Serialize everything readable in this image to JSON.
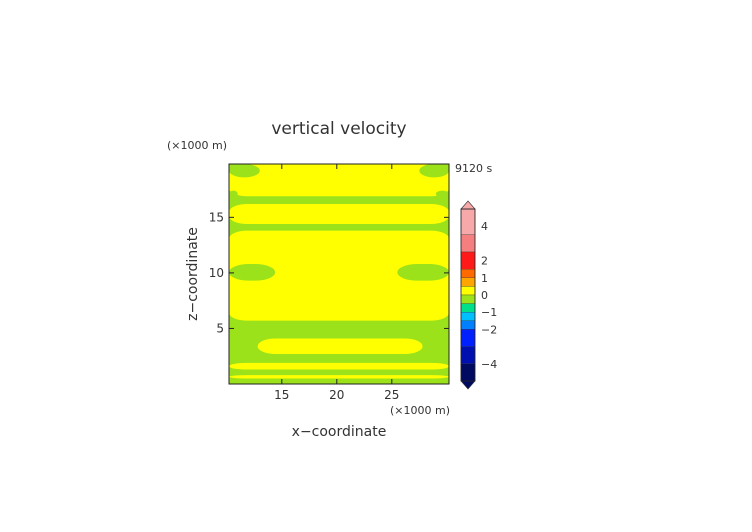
{
  "chart_data": {
    "type": "heatmap",
    "title": "vertical velocity",
    "time_label": "9120 s",
    "xlabel": "x−coordinate",
    "ylabel": "z−coordinate",
    "x_unit": "(×1000 m)",
    "y_unit": "(×1000 m)",
    "xlim": [
      10.2,
      30.2
    ],
    "ylim": [
      0,
      19.8
    ],
    "x_ticks": [
      15,
      20,
      25
    ],
    "x_tick_labels": [
      "15",
      "20",
      "25"
    ],
    "y_ticks": [
      5,
      10,
      15
    ],
    "y_tick_labels": [
      "5",
      "10",
      "15"
    ],
    "colorbar": {
      "tick_values": [
        4,
        2,
        1,
        0,
        -1,
        -2,
        -4
      ],
      "tick_labels": [
        "4",
        "2",
        "1",
        "0",
        "−1",
        "−2",
        "−4"
      ],
      "levels": [
        {
          "from": 3.5,
          "to": 5.0,
          "color": "#f7a8a8"
        },
        {
          "from": 2.5,
          "to": 3.5,
          "color": "#f57f7f"
        },
        {
          "from": 1.5,
          "to": 2.5,
          "color": "#ff1a1a"
        },
        {
          "from": 1.0,
          "to": 1.5,
          "color": "#ff6a00"
        },
        {
          "from": 0.5,
          "to": 1.0,
          "color": "#ffa500"
        },
        {
          "from": 0.0,
          "to": 0.5,
          "color": "#ffff00"
        },
        {
          "from": -0.5,
          "to": 0.0,
          "color": "#9be21a"
        },
        {
          "from": -1.0,
          "to": -0.5,
          "color": "#00e08a"
        },
        {
          "from": -1.5,
          "to": -1.0,
          "color": "#00bfff"
        },
        {
          "from": -2.0,
          "to": -1.5,
          "color": "#0080ff"
        },
        {
          "from": -3.0,
          "to": -2.0,
          "color": "#0020ff"
        },
        {
          "from": -4.0,
          "to": -3.0,
          "color": "#0010b0"
        },
        {
          "from": -5.0,
          "to": -4.0,
          "color": "#000a60"
        }
      ]
    },
    "background_value_color": "#9be21a",
    "positive_region_color": "#ffff00",
    "positive_regions": [
      {
        "z_bottom": 0.5,
        "z_top": 0.8,
        "x_left": 10.2,
        "x_right": 30.2
      },
      {
        "z_bottom": 1.3,
        "z_top": 1.9,
        "x_left": 10.2,
        "x_right": 30.2
      },
      {
        "z_bottom": 2.7,
        "z_top": 4.1,
        "x_left": 12.8,
        "x_right": 27.8
      },
      {
        "z_bottom": 5.7,
        "z_top": 13.8,
        "x_left": 10.2,
        "x_right": 30.2
      },
      {
        "z_bottom": 14.4,
        "z_top": 16.2,
        "x_left": 10.2,
        "x_right": 30.2
      },
      {
        "z_bottom": 16.9,
        "z_top": 19.8,
        "x_left": 10.2,
        "x_right": 30.2
      }
    ],
    "negative_pockets": [
      {
        "z_bottom": 9.3,
        "z_top": 10.8,
        "x_left": 10.2,
        "x_right": 14.4
      },
      {
        "z_bottom": 9.3,
        "z_top": 10.8,
        "x_left": 25.5,
        "x_right": 30.2
      },
      {
        "z_bottom": 4.5,
        "z_top": 5.5,
        "x_left": 10.2,
        "x_right": 11.5
      },
      {
        "z_bottom": 4.5,
        "z_top": 5.5,
        "x_left": 28.8,
        "x_right": 30.2
      },
      {
        "z_bottom": 18.6,
        "z_top": 19.8,
        "x_left": 10.2,
        "x_right": 13.0
      },
      {
        "z_bottom": 18.6,
        "z_top": 19.8,
        "x_left": 27.5,
        "x_right": 30.2
      },
      {
        "z_bottom": 16.8,
        "z_top": 17.4,
        "x_left": 10.2,
        "x_right": 11.0
      },
      {
        "z_bottom": 16.8,
        "z_top": 17.4,
        "x_left": 29.0,
        "x_right": 30.2
      }
    ]
  }
}
